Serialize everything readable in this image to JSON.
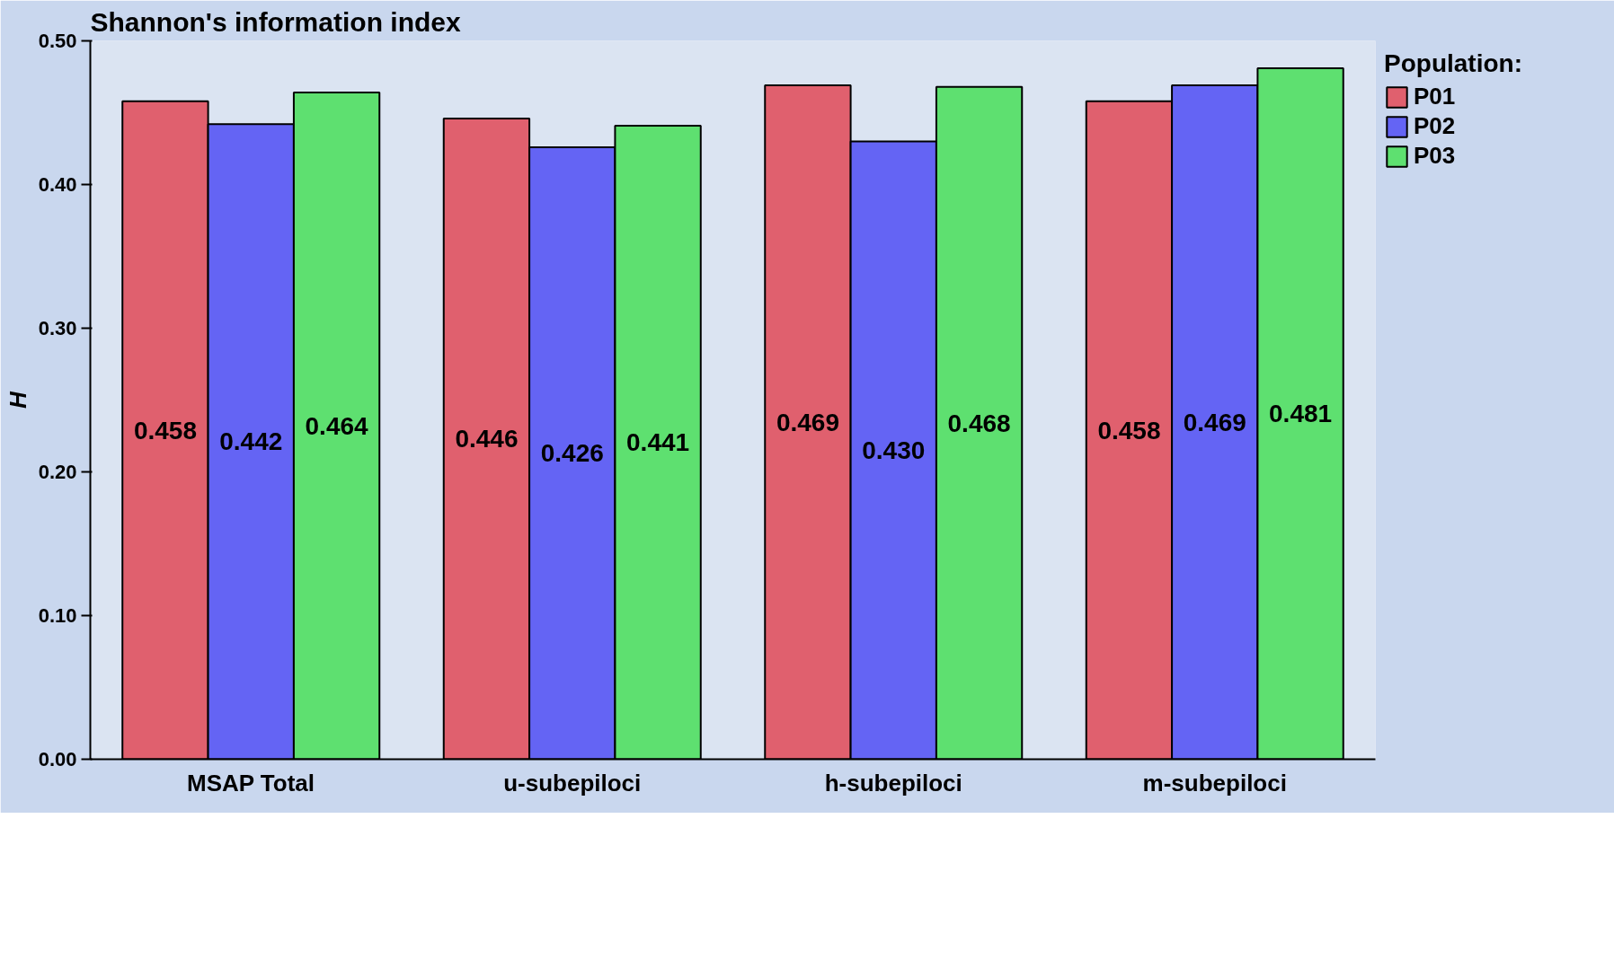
{
  "chart_data": {
    "type": "bar",
    "title": "Shannon's information index",
    "ylabel": "H",
    "legend_title": "Population:",
    "categories": [
      "MSAP Total",
      "u-subepiloci",
      "h-subepiloci",
      "m-subepiloci"
    ],
    "series": [
      {
        "name": "P01",
        "color": "#e0606e",
        "values": [
          0.458,
          0.446,
          0.469,
          0.458
        ],
        "value_labels": [
          "0.458",
          "0.446",
          "0.469",
          "0.458"
        ]
      },
      {
        "name": "P02",
        "color": "#6464f4",
        "values": [
          0.442,
          0.426,
          0.43,
          0.469
        ],
        "value_labels": [
          "0.442",
          "0.426",
          "0.430",
          "0.469"
        ]
      },
      {
        "name": "P03",
        "color": "#5ee070",
        "values": [
          0.464,
          0.441,
          0.468,
          0.481
        ],
        "value_labels": [
          "0.464",
          "0.441",
          "0.468",
          "0.481"
        ]
      }
    ],
    "ylim": [
      0,
      0.5
    ],
    "yticks": [
      {
        "value": 0,
        "label": "0.00"
      },
      {
        "value": 0.1,
        "label": "0.10"
      },
      {
        "value": 0.2,
        "label": "0.20"
      },
      {
        "value": 0.3,
        "label": "0.30"
      },
      {
        "value": 0.4,
        "label": "0.40"
      },
      {
        "value": 0.5,
        "label": "0.50"
      }
    ],
    "grid": false,
    "legend": "top right"
  }
}
